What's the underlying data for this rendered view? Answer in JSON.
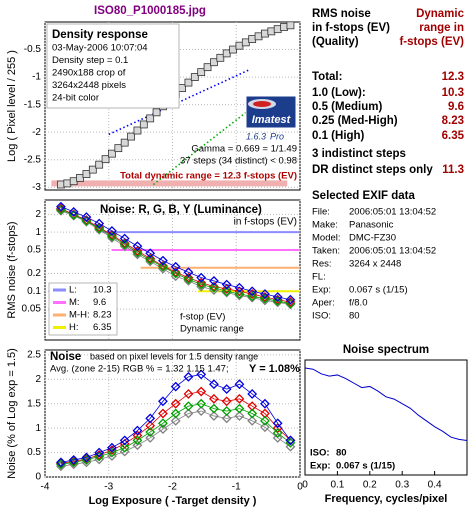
{
  "title": "ISO80_P1000185.jpg",
  "chart_data": [
    {
      "type": "line",
      "title": "Density response",
      "notes": [
        "03-May-2006 10:07:04",
        "Density step = 0.1",
        "2490x188 crop of",
        "3264x2448 pixels",
        "24-bit color"
      ],
      "ylabel": "Log ( Pixel level / 255 )",
      "xlim": [
        -4,
        0
      ],
      "xticks": [
        -4,
        -3,
        -2,
        -1,
        0
      ],
      "ylim": [
        -3.05,
        0
      ],
      "yticks": [
        -3,
        -2.5,
        -2,
        -1.5,
        -1,
        -0.5
      ],
      "grid": true,
      "marker": "square",
      "x": [
        -3.75,
        -3.65,
        -3.55,
        -3.45,
        -3.35,
        -3.25,
        -3.15,
        -3.05,
        -2.95,
        -2.85,
        -2.75,
        -2.65,
        -2.55,
        -2.45,
        -2.35,
        -2.25,
        -2.15,
        -2.05,
        -1.95,
        -1.85,
        -1.75,
        -1.65,
        -1.55,
        -1.45,
        -1.35,
        -1.25,
        -1.15,
        -1.05,
        -0.95,
        -0.85,
        -0.75,
        -0.65,
        -0.55,
        -0.45,
        -0.35,
        -0.25,
        -0.15
      ],
      "series": [
        {
          "color": "#777777",
          "values": [
            -2.95,
            -2.93,
            -2.89,
            -2.83,
            -2.76,
            -2.68,
            -2.59,
            -2.49,
            -2.39,
            -2.29,
            -2.19,
            -2.08,
            -1.97,
            -1.86,
            -1.75,
            -1.64,
            -1.53,
            -1.42,
            -1.31,
            -1.2,
            -1.1,
            -1.0,
            -0.91,
            -0.82,
            -0.73,
            -0.65,
            -0.57,
            -0.5,
            -0.43,
            -0.37,
            -0.31,
            -0.26,
            -0.21,
            -0.17,
            -0.13,
            -0.09,
            -0.06
          ]
        }
      ],
      "fits": [
        {
          "color": "#0000ff",
          "x": [
            -3.0,
            -0.8
          ],
          "values": [
            -2.04,
            -0.87
          ]
        },
        {
          "color": "#00b000",
          "x": [
            -2.3,
            -0.8
          ],
          "values": [
            -2.95,
            -1.6
          ]
        }
      ],
      "dr_bar": {
        "x": [
          -3.9,
          -0.2
        ],
        "y": -2.93,
        "color": "#f0b0b0"
      },
      "logo": {
        "name": "Imatest",
        "version": "1.6.3",
        "edition": "Pro"
      },
      "gamma": "Gamma = 0.669 = 1/1.49",
      "steps": "37 steps (34 distinct) < 0.98",
      "dynamic_range": "Total dynamic range = 12.3 f-stops (EV)"
    },
    {
      "type": "line",
      "title": "Noise: R, G, B, Y (Luminance)",
      "subtitle": "in f-stops (EV)",
      "ylabel": "RMS noise (f-stops)",
      "xlim": [
        -4,
        0
      ],
      "xticks": [
        -4,
        -3,
        -2,
        -1,
        0
      ],
      "ylim": [
        0.015,
        3.5
      ],
      "ylog": true,
      "yticks": [
        0.05,
        0.1,
        0.2,
        0.5,
        1,
        2
      ],
      "grid": true,
      "marker": "diamond",
      "x": [
        -3.75,
        -3.55,
        -3.35,
        -3.15,
        -2.95,
        -2.75,
        -2.55,
        -2.35,
        -2.15,
        -1.95,
        -1.75,
        -1.55,
        -1.35,
        -1.15,
        -0.95,
        -0.75,
        -0.55,
        -0.35,
        -0.15
      ],
      "series": [
        {
          "color": "#808080",
          "values": [
            2.3,
            1.9,
            1.5,
            1.1,
            0.8,
            0.58,
            0.42,
            0.32,
            0.24,
            0.18,
            0.15,
            0.12,
            0.105,
            0.095,
            0.085,
            0.078,
            0.07,
            0.065,
            0.06
          ]
        },
        {
          "color": "#e00000",
          "values": [
            2.5,
            2.0,
            1.6,
            1.2,
            0.9,
            0.65,
            0.48,
            0.36,
            0.27,
            0.21,
            0.17,
            0.14,
            0.12,
            0.11,
            0.1,
            0.09,
            0.08,
            0.072,
            0.066
          ]
        },
        {
          "color": "#00a000",
          "values": [
            2.4,
            1.95,
            1.55,
            1.15,
            0.85,
            0.62,
            0.45,
            0.34,
            0.26,
            0.2,
            0.16,
            0.13,
            0.115,
            0.1,
            0.09,
            0.082,
            0.075,
            0.068,
            0.062
          ]
        },
        {
          "color": "#0000e0",
          "values": [
            2.7,
            2.2,
            1.8,
            1.4,
            1.05,
            0.78,
            0.58,
            0.44,
            0.33,
            0.26,
            0.21,
            0.17,
            0.15,
            0.13,
            0.115,
            0.1,
            0.09,
            0.08,
            0.072
          ]
        }
      ],
      "levels": [
        {
          "label": "L:",
          "value": 10.3,
          "noise": 1,
          "from": -3.1,
          "color": "#8c8cff"
        },
        {
          "label": "M:",
          "value": 9.6,
          "noise": 0.5,
          "from": -2.95,
          "color": "#ff70ff"
        },
        {
          "label": "M-H:",
          "value": 8.23,
          "noise": 0.25,
          "from": -2.5,
          "color": "#ffb070"
        },
        {
          "label": "H:",
          "value": 6.35,
          "noise": 0.1,
          "from": -1.6,
          "color": "#f0f000"
        }
      ],
      "annotations": [
        "f-stop (EV)",
        "Dynamic range"
      ]
    },
    {
      "type": "line",
      "title": "Noise",
      "subtitle": "based on pixel levels for 1.5 density range",
      "average": "Avg. (zone 2-15) RGB % = 1.32  1.15  1.47;",
      "average_y": "Y = 1.08%",
      "ylabel": "Noise (% of Log exp = 1.5)",
      "xlabel": "Log Exposure ( -Target density )",
      "xlim": [
        -4,
        0
      ],
      "xticks": [
        -4,
        -3,
        -2,
        -1,
        0
      ],
      "ylim": [
        0,
        2.6
      ],
      "yticks": [
        0,
        0.5,
        1,
        1.5,
        2,
        2.5
      ],
      "grid": true,
      "marker": "diamond",
      "x": [
        -3.75,
        -3.55,
        -3.35,
        -3.15,
        -2.95,
        -2.75,
        -2.55,
        -2.35,
        -2.15,
        -1.95,
        -1.75,
        -1.55,
        -1.35,
        -1.15,
        -0.95,
        -0.75,
        -0.55,
        -0.35,
        -0.15
      ],
      "series": [
        {
          "color": "#808080",
          "values": [
            0.22,
            0.26,
            0.3,
            0.36,
            0.43,
            0.52,
            0.65,
            0.8,
            0.98,
            1.15,
            1.3,
            1.35,
            1.25,
            1.2,
            1.25,
            1.15,
            1.02,
            0.8,
            0.62
          ]
        },
        {
          "color": "#e00000",
          "values": [
            0.28,
            0.32,
            0.37,
            0.45,
            0.55,
            0.68,
            0.85,
            1.05,
            1.3,
            1.5,
            1.7,
            1.75,
            1.6,
            1.55,
            1.6,
            1.45,
            1.3,
            1.0,
            0.75
          ]
        },
        {
          "color": "#00a000",
          "values": [
            0.26,
            0.3,
            0.35,
            0.42,
            0.5,
            0.6,
            0.75,
            0.92,
            1.1,
            1.3,
            1.45,
            1.5,
            1.4,
            1.35,
            1.4,
            1.3,
            1.15,
            0.9,
            0.7
          ]
        },
        {
          "color": "#0000e0",
          "values": [
            0.3,
            0.35,
            0.4,
            0.5,
            0.6,
            0.75,
            0.95,
            1.2,
            1.55,
            1.85,
            2.05,
            2.1,
            1.9,
            1.8,
            1.9,
            1.7,
            1.5,
            1.1,
            0.75
          ]
        }
      ]
    },
    {
      "type": "line",
      "title": "Noise spectrum",
      "xlabel": "Frequency, cycles/pixel",
      "xlim": [
        0,
        0.5
      ],
      "xticks": [
        0,
        0.1,
        0.2,
        0.3,
        0.4
      ],
      "ylim": [
        0,
        1
      ],
      "grid": false,
      "x": [
        0,
        0.025,
        0.05,
        0.075,
        0.1,
        0.125,
        0.15,
        0.175,
        0.2,
        0.225,
        0.25,
        0.275,
        0.3,
        0.325,
        0.35,
        0.375,
        0.4,
        0.425,
        0.45,
        0.475,
        0.5
      ],
      "series": [
        {
          "color": "#0000cc",
          "values": [
            0.93,
            0.92,
            0.88,
            0.86,
            0.87,
            0.84,
            0.8,
            0.76,
            0.77,
            0.73,
            0.68,
            0.66,
            0.62,
            0.58,
            0.52,
            0.47,
            0.42,
            0.38,
            0.33,
            0.31,
            0.3
          ]
        }
      ],
      "info": [
        [
          "ISO:",
          "80"
        ],
        [
          "Exp:",
          "0.067 s  (1/15)"
        ]
      ]
    }
  ],
  "rms_table": {
    "header_left": [
      "RMS noise",
      "in f-stops (EV)",
      "(Quality)"
    ],
    "header_right": [
      "Dynamic",
      "range in",
      "f-stops (EV)"
    ],
    "rows": [
      [
        "Total:",
        "12.3"
      ],
      [
        "1.0  (Low):",
        "10.3"
      ],
      [
        "0.5  (Medium)",
        "9.6"
      ],
      [
        "0.25 (Med-High)",
        "8.23"
      ],
      [
        "0.1  (High)",
        "6.35"
      ],
      [
        "3 indistinct steps",
        ""
      ],
      [
        "DR distinct steps only",
        "11.3"
      ]
    ]
  },
  "exif": {
    "title": "Selected EXIF data",
    "rows": [
      [
        "File:",
        "2006:05:01 13:04:52"
      ],
      [
        "Make:",
        "Panasonic"
      ],
      [
        "Model:",
        "DMC-FZ30"
      ],
      [
        "Taken:",
        "2006:05:01 13:04:52"
      ],
      [
        "Res:",
        "3264 x 2448"
      ],
      [
        "FL:",
        ""
      ],
      [
        "Exp:",
        "0.067 s  (1/15)"
      ],
      [
        "Aper:",
        "f/8.0"
      ],
      [
        "ISO:",
        "80"
      ]
    ]
  }
}
